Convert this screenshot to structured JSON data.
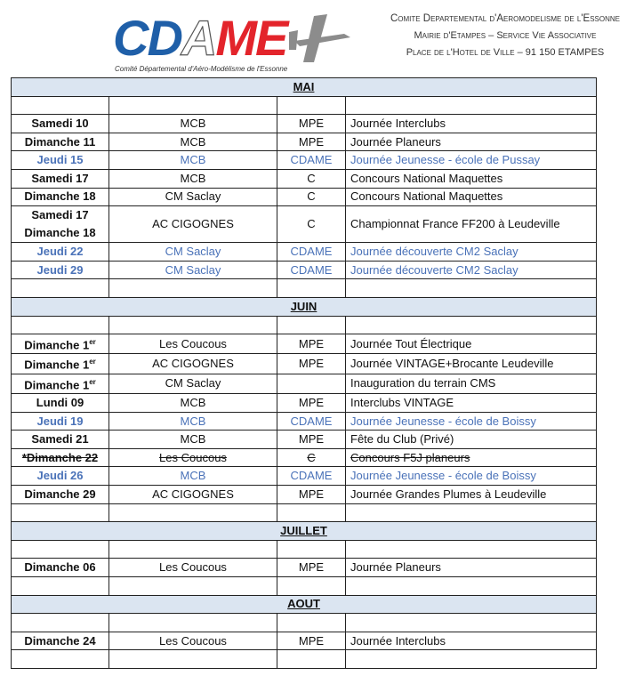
{
  "header": {
    "logo_text": "CDAME",
    "logo_subtitle": "Comité Départemental d'Aéro-Modélisme de l'Essonne",
    "org_line1": "Comite Departemental d'Aeromodelisme de l'Essonne",
    "org_line2": "Mairie d'Etampes – Service Vie Associative",
    "org_line3": "Place de l'Hotel de Ville – 91 150 ETAMPES"
  },
  "colors": {
    "highlight_text": "#4a72b8",
    "section_bg": "#dbe5f1",
    "logo_blue": "#1f5fa8",
    "logo_red": "#e3242b"
  },
  "sections": [
    {
      "title": "MAI",
      "rows": [
        {
          "day": "",
          "club": "",
          "org": "",
          "event": ""
        },
        {
          "day": "Samedi 10",
          "club": "MCB",
          "org": "MPE",
          "event": "Journée Interclubs"
        },
        {
          "day": "Dimanche 11",
          "club": "MCB",
          "org": "MPE",
          "event": "Journée Planeurs"
        },
        {
          "day": "Jeudi 15",
          "club": "MCB",
          "org": "CDAME",
          "event": "Journée Jeunesse - école de Pussay",
          "style": "blue"
        },
        {
          "day": "Samedi 17",
          "club": "MCB",
          "org": "C",
          "event": "Concours National Maquettes"
        },
        {
          "day": "Dimanche 18",
          "club": "CM Saclay",
          "org": "C",
          "event": "Concours National Maquettes"
        },
        {
          "day": "Samedi 17",
          "day2": "Dimanche 18",
          "club": "AC CIGOGNES",
          "org": "C",
          "event": "Championnat France FF200 à Leudeville"
        },
        {
          "day": "Jeudi 22",
          "club": "CM Saclay",
          "org": "CDAME",
          "event": "Journée découverte CM2 Saclay",
          "style": "blue"
        },
        {
          "day": "Jeudi 29",
          "club": "CM Saclay",
          "org": "CDAME",
          "event": "Journée découverte CM2 Saclay",
          "style": "blue"
        },
        {
          "day": "",
          "club": "",
          "org": "",
          "event": ""
        }
      ]
    },
    {
      "title": "JUIN",
      "rows": [
        {
          "day": "",
          "club": "",
          "org": "",
          "event": ""
        },
        {
          "day": "Dimanche 1",
          "sup": "er",
          "club": "Les Coucous",
          "org": "MPE",
          "event": "Journée Tout Électrique"
        },
        {
          "day": "Dimanche 1",
          "sup": "er",
          "club": "AC CIGOGNES",
          "org": "MPE",
          "event": "Journée VINTAGE+Brocante Leudeville"
        },
        {
          "day": "Dimanche 1",
          "sup": "er",
          "club": "CM Saclay",
          "org": "",
          "event": "Inauguration du terrain CMS"
        },
        {
          "day": "Lundi 09",
          "club": "MCB",
          "org": "MPE",
          "event": "Interclubs VINTAGE"
        },
        {
          "day": "Jeudi 19",
          "club": "MCB",
          "org": "CDAME",
          "event": "Journée Jeunesse - école de Boissy",
          "style": "blue"
        },
        {
          "day": "Samedi 21",
          "club": "MCB",
          "org": "MPE",
          "event": "Fête du Club (Privé)"
        },
        {
          "day": "*Dimanche 22",
          "club": "Les Coucous",
          "org": "C",
          "event": "Concours F5J planeurs",
          "style": "strike"
        },
        {
          "day": "Jeudi 26",
          "club": "MCB",
          "org": "CDAME",
          "event": "Journée Jeunesse - école de Boissy",
          "style": "blue"
        },
        {
          "day": "Dimanche 29",
          "club": "AC CIGOGNES",
          "org": "MPE",
          "event": "Journée Grandes Plumes à Leudeville"
        },
        {
          "day": "",
          "club": "",
          "org": "",
          "event": ""
        }
      ]
    },
    {
      "title": "JUILLET",
      "rows": [
        {
          "day": "",
          "club": "",
          "org": "",
          "event": ""
        },
        {
          "day": "Dimanche 06",
          "club": "Les Coucous",
          "org": "MPE",
          "event": "Journée Planeurs"
        },
        {
          "day": "",
          "club": "",
          "org": "",
          "event": ""
        }
      ]
    },
    {
      "title": "AOUT",
      "rows": [
        {
          "day": "",
          "club": "",
          "org": "",
          "event": ""
        },
        {
          "day": "Dimanche 24",
          "club": "Les Coucous",
          "org": "MPE",
          "event": "Journée Interclubs"
        },
        {
          "day": "",
          "club": "",
          "org": "",
          "event": ""
        }
      ]
    }
  ]
}
